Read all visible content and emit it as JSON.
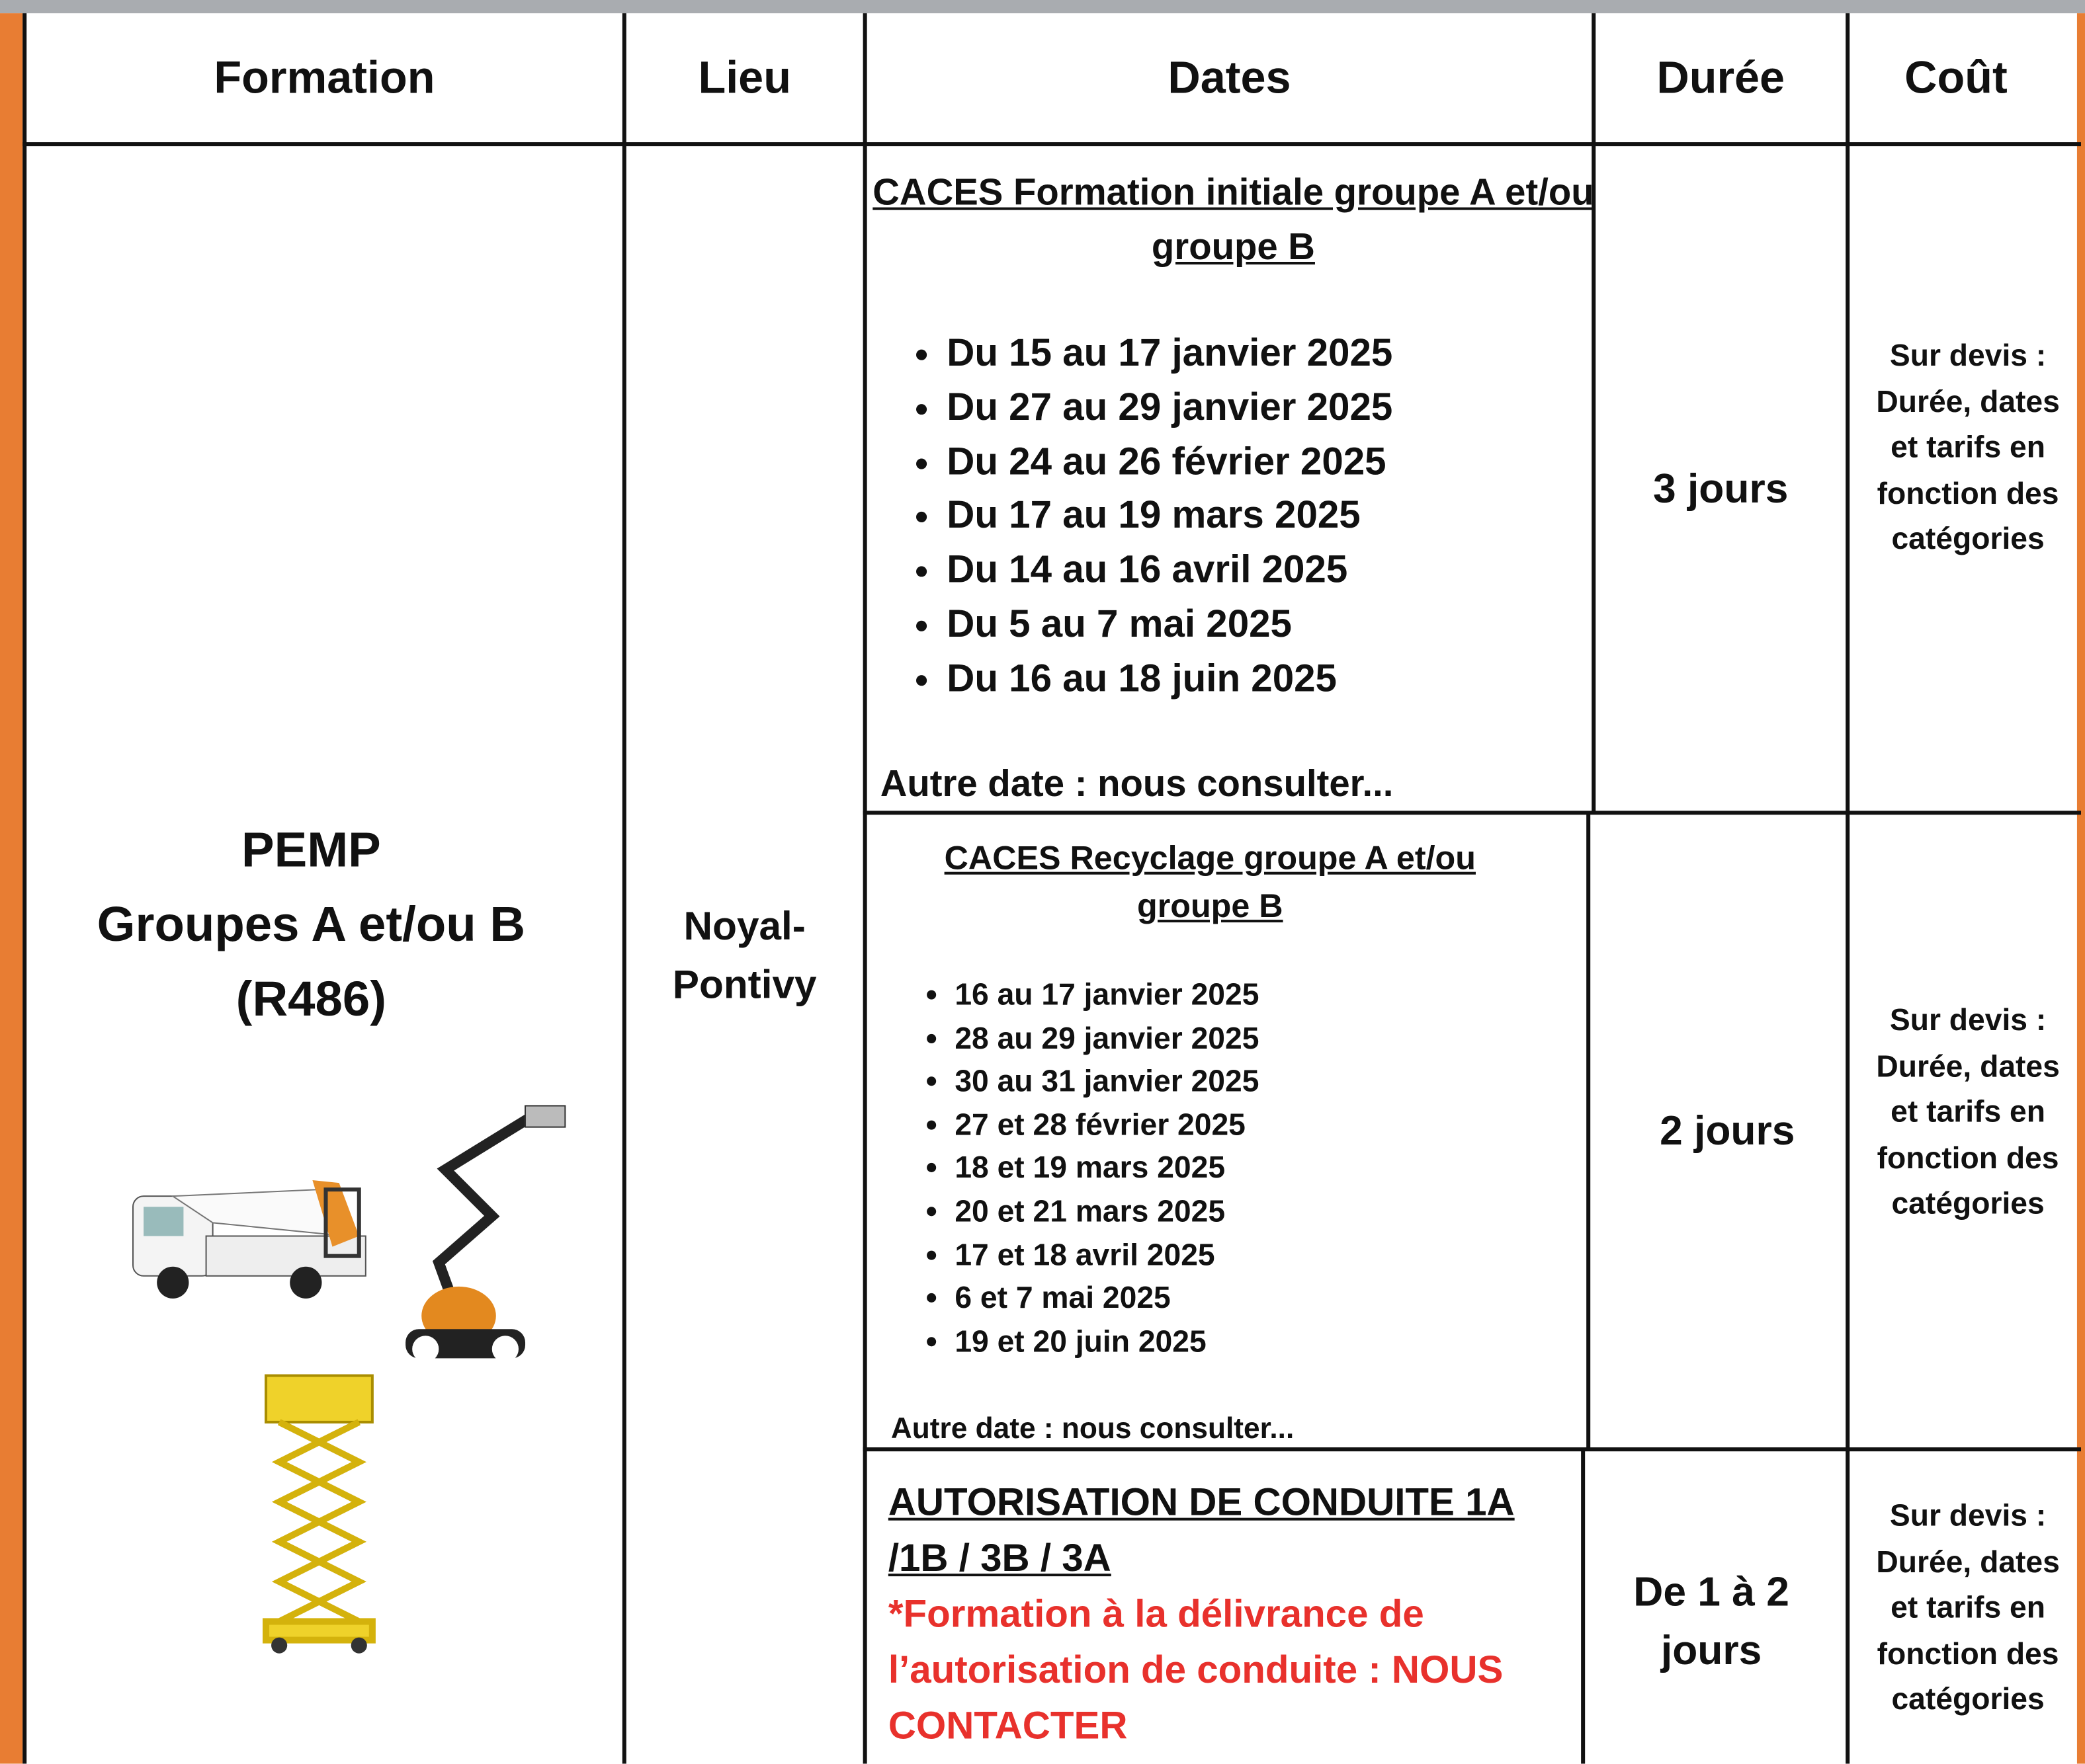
{
  "header": {
    "columns": [
      "Formation",
      "Lieu",
      "Dates",
      "Durée",
      "Coût"
    ]
  },
  "formation": {
    "lines": [
      "PEMP",
      "Groupes A et/ou B",
      "(R486)"
    ]
  },
  "lieu": "Noyal-Pontivy",
  "sessions": [
    {
      "title": "CACES Formation initiale groupe A et/ou groupe B",
      "dates": [
        "Du 15 au 17 janvier 2025",
        "Du 27 au 29 janvier 2025",
        "Du 24 au 26 février 2025",
        "Du 17 au 19 mars 2025",
        "Du 14 au 16 avril 2025",
        "Du 5 au 7 mai 2025",
        "Du 16 au 18 juin 2025"
      ],
      "note": "Autre date : nous consulter...",
      "duree": "3 jours",
      "cout": "Sur devis : Durée, dates et tarifs en fonction des catégories"
    },
    {
      "title": "CACES Recyclage groupe A et/ou groupe B",
      "dates": [
        "16 au 17 janvier 2025",
        "28 au 29 janvier 2025",
        "30 au 31 janvier 2025",
        "27 et 28 février 2025",
        "18 et 19 mars 2025",
        "20 et 21 mars 2025",
        "17 et 18 avril 2025",
        "6 et 7 mai 2025",
        "19 et 20 juin 2025"
      ],
      "note": "Autre date : nous consulter...",
      "duree": "2 jours",
      "cout": "Sur devis : Durée, dates et tarifs en fonction des catégories"
    },
    {
      "title": "AUTORISATION DE CONDUITE 1A /1B / 3B / 3A",
      "warning": "*Formation à la délivrance de l’autorisation de conduite : NOUS CONTACTER",
      "duree": "De 1 à 2 jours",
      "cout": "Sur devis : Durée, dates et tarifs en fonction des catégories"
    }
  ]
}
